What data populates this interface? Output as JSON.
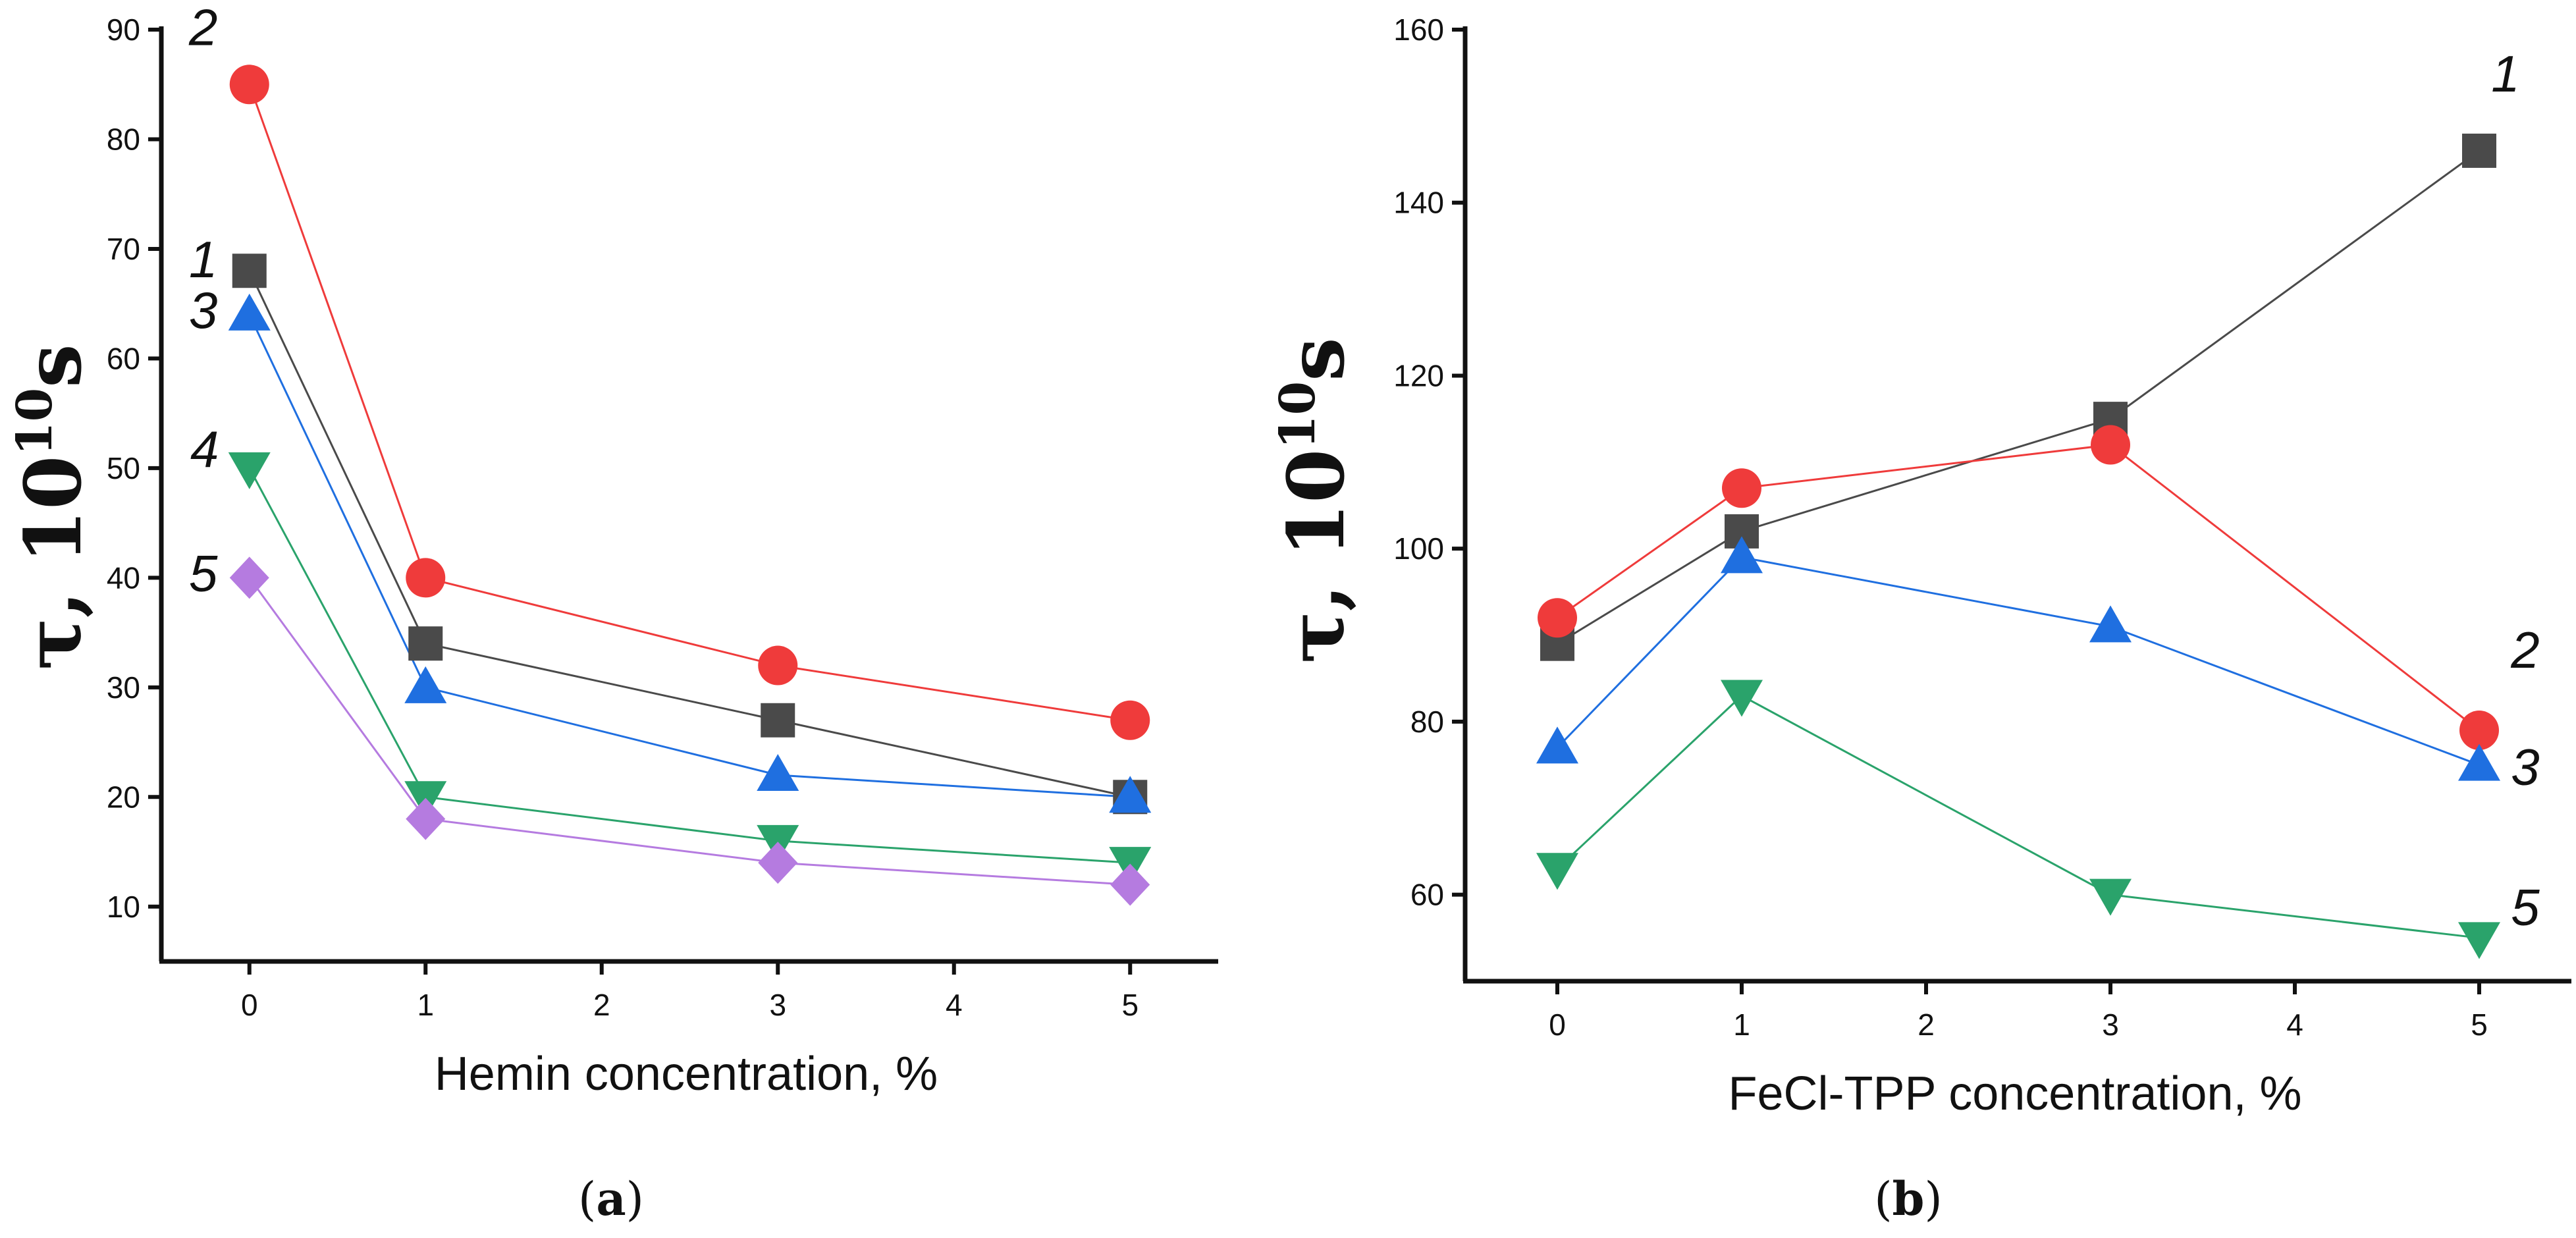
{
  "chart_data": [
    {
      "type": "line",
      "panel_label": {
        "open": "(",
        "letter": "a",
        "close": ")"
      },
      "xlabel": "Hemin concentration, %",
      "ylabel": {
        "main": "τ,  10",
        "sup": "10",
        "unit": "s"
      },
      "xlim": [
        -0.5,
        5.5
      ],
      "ylim": [
        5,
        90
      ],
      "xticks": [
        0,
        1,
        2,
        3,
        4,
        5
      ],
      "yticks": [
        10,
        20,
        30,
        40,
        50,
        60,
        70,
        80,
        90
      ],
      "series": [
        {
          "name": "1",
          "marker": "square",
          "color": "#4a4a4a",
          "x": [
            0,
            1,
            3,
            5
          ],
          "y": [
            68,
            34,
            27,
            20
          ]
        },
        {
          "name": "2",
          "marker": "circle",
          "color": "#ef3b3b",
          "x": [
            0,
            1,
            3,
            5
          ],
          "y": [
            85,
            40,
            32,
            27
          ]
        },
        {
          "name": "3",
          "marker": "triangle-up",
          "color": "#1f6fe0",
          "x": [
            0,
            1,
            3,
            5
          ],
          "y": [
            64,
            30,
            22,
            20
          ]
        },
        {
          "name": "4",
          "marker": "triangle-down",
          "color": "#2aa36b",
          "x": [
            0,
            1,
            3,
            5
          ],
          "y": [
            50,
            20,
            16,
            14
          ]
        },
        {
          "name": "5",
          "marker": "diamond",
          "color": "#b57be0",
          "x": [
            0,
            1,
            3,
            5
          ],
          "y": [
            40,
            18,
            14,
            12
          ]
        }
      ]
    },
    {
      "type": "line",
      "panel_label": {
        "open": "(",
        "letter": "b",
        "close": ")"
      },
      "xlabel": "FeCl-TPP concentration, %",
      "ylabel": {
        "main": "τ,  10",
        "sup": "10",
        "unit": "s"
      },
      "xlim": [
        -0.5,
        5.5
      ],
      "ylim": [
        50,
        160
      ],
      "xticks": [
        0,
        1,
        2,
        3,
        4,
        5
      ],
      "yticks": [
        60,
        80,
        100,
        120,
        140,
        160
      ],
      "series": [
        {
          "name": "1",
          "marker": "square",
          "color": "#4a4a4a",
          "x": [
            0,
            1,
            3,
            5
          ],
          "y": [
            89,
            102,
            115,
            146
          ]
        },
        {
          "name": "2",
          "marker": "circle",
          "color": "#ef3b3b",
          "x": [
            0,
            1,
            3,
            5
          ],
          "y": [
            92,
            107,
            112,
            79
          ]
        },
        {
          "name": "3",
          "marker": "triangle-up",
          "color": "#1f6fe0",
          "x": [
            0,
            1,
            3,
            5
          ],
          "y": [
            77,
            99,
            91,
            75
          ]
        },
        {
          "name": "5",
          "marker": "triangle-down",
          "color": "#2aa36b",
          "x": [
            0,
            1,
            3,
            5
          ],
          "y": [
            63,
            83,
            60,
            55
          ]
        }
      ]
    }
  ]
}
